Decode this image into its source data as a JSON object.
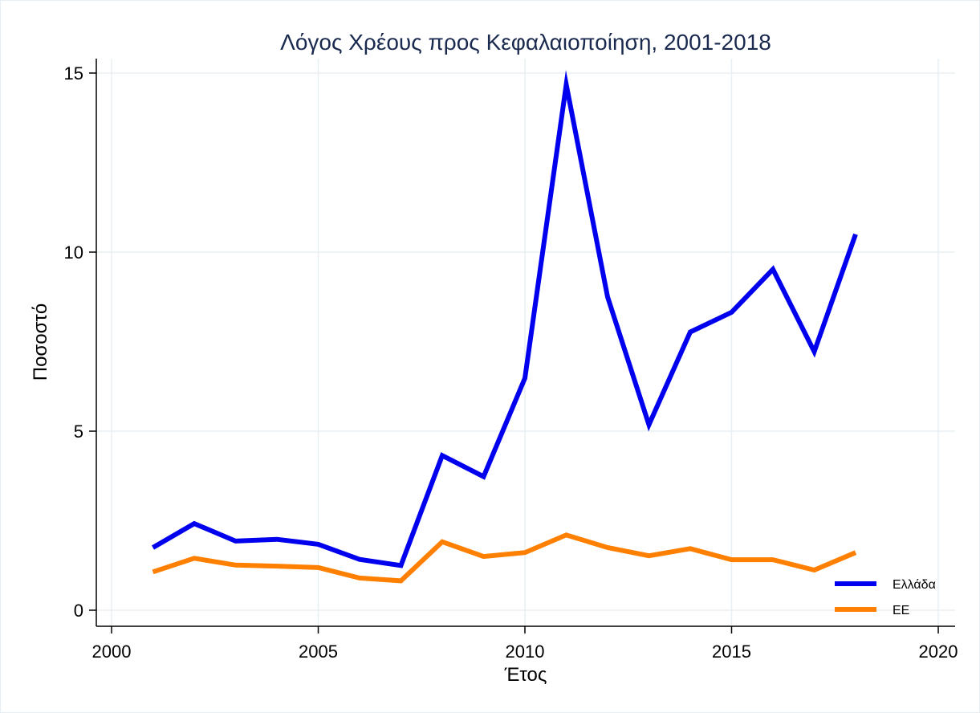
{
  "chart_data": {
    "type": "line",
    "title": "Λόγος Χρέους προς Κεφαλαιοποίηση, 2001-2018",
    "xlabel": "Έτος",
    "ylabel": "Ποσοστό",
    "xlim": [
      2000,
      2020
    ],
    "ylim": [
      0,
      15
    ],
    "x_ticks": [
      2000,
      2005,
      2010,
      2015,
      2020
    ],
    "y_ticks": [
      0,
      5,
      10,
      15
    ],
    "grid": true,
    "legend_position": "bottom-right",
    "x": [
      2001,
      2002,
      2003,
      2004,
      2005,
      2006,
      2007,
      2008,
      2009,
      2010,
      2011,
      2012,
      2013,
      2014,
      2015,
      2016,
      2017,
      2018
    ],
    "series": [
      {
        "name": "Ελλάδα",
        "color": "#0000ee",
        "values": [
          1.75,
          2.42,
          1.93,
          1.98,
          1.84,
          1.42,
          1.25,
          4.32,
          3.73,
          6.48,
          14.68,
          8.75,
          5.18,
          7.77,
          8.32,
          9.52,
          7.22,
          10.5
        ]
      },
      {
        "name": "ΕΕ",
        "color": "#ff8000",
        "values": [
          1.07,
          1.45,
          1.26,
          1.23,
          1.19,
          0.9,
          0.82,
          1.91,
          1.5,
          1.61,
          2.1,
          1.75,
          1.52,
          1.72,
          1.41,
          1.41,
          1.12,
          1.61
        ]
      }
    ]
  }
}
